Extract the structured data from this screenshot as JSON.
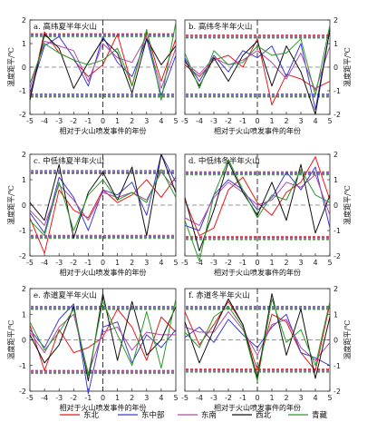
{
  "legend": [
    {
      "name": "东北",
      "color": "#e41a1c"
    },
    {
      "name": "东中部",
      "color": "#3d3bd6"
    },
    {
      "name": "东南",
      "color": "#b14aa8"
    },
    {
      "name": "西北",
      "color": "#111111"
    },
    {
      "name": "青藏",
      "color": "#2a9a2a"
    }
  ],
  "chart_data": [
    {
      "type": "line",
      "panel": "a",
      "title": "a. 高纬夏半年火山",
      "xlabel": "相对于火山喷发事件的年份",
      "ylabel": "温度距平/℃",
      "x": [
        -5,
        -4,
        -3,
        -2,
        -1,
        0,
        1,
        2,
        3,
        4,
        5
      ],
      "xlim": [
        -5,
        5
      ],
      "ylim": [
        -2,
        2
      ],
      "yticks_side": "left",
      "thresholds": [
        1.35,
        -1.2
      ],
      "series": [
        {
          "name": "东北",
          "values": [
            -1.3,
            1.5,
            0.6,
            0.3,
            -0.4,
            0.1,
            1.4,
            -0.8,
            1.5,
            -0.6,
            1.2
          ]
        },
        {
          "name": "东中部",
          "values": [
            -1.1,
            0.9,
            1.3,
            0.4,
            -0.8,
            1.3,
            0.2,
            -0.4,
            1.2,
            -1.2,
            0.5
          ]
        },
        {
          "name": "东南",
          "values": [
            -0.9,
            1.1,
            0.9,
            0.7,
            -0.6,
            1.0,
            0.4,
            0.2,
            1.3,
            -0.9,
            0.8
          ]
        },
        {
          "name": "西北",
          "values": [
            -1.4,
            1.4,
            0.8,
            -0.9,
            0.2,
            1.2,
            0.6,
            -1.1,
            1.2,
            0.1,
            0.9
          ]
        },
        {
          "name": "青藏",
          "values": [
            -0.7,
            1.0,
            0.6,
            0.3,
            0.1,
            0.3,
            0.8,
            -0.8,
            1.6,
            -1.4,
            1.9
          ]
        }
      ]
    },
    {
      "type": "line",
      "panel": "b",
      "title": "b. 高纬冬半年火山",
      "xlabel": "相对于火山喷发事件的年份",
      "ylabel": "温度距平/℃",
      "x": [
        -5,
        -4,
        -3,
        -2,
        -1,
        0,
        1,
        2,
        3,
        4,
        5
      ],
      "xlim": [
        -5,
        5
      ],
      "ylim": [
        -2,
        2
      ],
      "yticks_side": "right",
      "thresholds": [
        1.3,
        -1.2
      ],
      "series": [
        {
          "name": "东北",
          "values": [
            0.1,
            -0.4,
            0.3,
            0.5,
            0.0,
            1.2,
            -1.6,
            -0.3,
            -0.5,
            -0.9,
            -0.6
          ]
        },
        {
          "name": "东中部",
          "values": [
            0.4,
            -0.6,
            0.5,
            -0.2,
            0.7,
            0.4,
            0.9,
            -0.4,
            1.0,
            -1.8,
            1.6
          ]
        },
        {
          "name": "东南",
          "values": [
            0.2,
            -0.3,
            0.4,
            0.1,
            0.3,
            0.7,
            0.2,
            -0.5,
            0.6,
            -1.0,
            0.9
          ]
        },
        {
          "name": "西北",
          "values": [
            0.3,
            -0.8,
            0.4,
            -0.6,
            0.5,
            1.1,
            -0.8,
            0.9,
            -0.2,
            -2.0,
            1.6
          ]
        },
        {
          "name": "青藏",
          "values": [
            0.6,
            -0.9,
            0.7,
            0.1,
            0.2,
            0.9,
            0.5,
            0.6,
            1.2,
            -1.2,
            1.8
          ]
        }
      ]
    },
    {
      "type": "line",
      "panel": "c",
      "title": "c. 中低纬夏半年火山",
      "xlabel": "相对于火山喷发事件的年份",
      "ylabel": "温度距平/℃",
      "x": [
        -5,
        -4,
        -3,
        -2,
        -1,
        0,
        1,
        2,
        3,
        4,
        5
      ],
      "xlim": [
        -5,
        5
      ],
      "ylim": [
        -2,
        2
      ],
      "yticks_side": "left",
      "thresholds": [
        1.3,
        -1.25
      ],
      "series": [
        {
          "name": "东北",
          "values": [
            -0.5,
            -1.9,
            0.6,
            -0.2,
            -0.5,
            0.6,
            0.1,
            0.4,
            1.0,
            0.3,
            1.1
          ]
        },
        {
          "name": "东中部",
          "values": [
            -0.3,
            -1.1,
            1.1,
            0.3,
            -1.0,
            0.6,
            0.4,
            0.9,
            -0.4,
            2.0,
            0.9
          ]
        },
        {
          "name": "东南",
          "values": [
            -0.2,
            -0.8,
            0.8,
            0.2,
            -0.6,
            0.5,
            0.3,
            0.5,
            0.2,
            1.3,
            0.6
          ]
        },
        {
          "name": "西北",
          "values": [
            0.1,
            -0.6,
            1.6,
            -1.3,
            0.5,
            1.3,
            0.2,
            1.5,
            -1.2,
            2.0,
            0.5
          ]
        },
        {
          "name": "青藏",
          "values": [
            -0.6,
            -1.2,
            0.9,
            -1.0,
            0.4,
            1.0,
            0.2,
            0.5,
            0.1,
            1.4,
            0.3
          ]
        }
      ]
    },
    {
      "type": "line",
      "panel": "d",
      "title": "d. 中低纬冬半年火山",
      "xlabel": "相对于火山喷发事件的年份",
      "ylabel": "温度距平/℃",
      "x": [
        -5,
        -4,
        -3,
        -2,
        -1,
        0,
        1,
        2,
        3,
        4,
        5
      ],
      "xlim": [
        -5,
        5
      ],
      "ylim": [
        -2,
        2
      ],
      "yticks_side": "right",
      "thresholds": [
        1.25,
        -1.3
      ],
      "series": [
        {
          "name": "东北",
          "values": [
            0.2,
            -1.2,
            -0.9,
            0.6,
            1.1,
            0.1,
            -0.4,
            0.5,
            0.9,
            1.9,
            0.2
          ]
        },
        {
          "name": "东中部",
          "values": [
            -0.8,
            -1.0,
            0.4,
            1.0,
            0.6,
            -0.2,
            0.3,
            1.3,
            0.6,
            1.5,
            -0.9
          ]
        },
        {
          "name": "东南",
          "values": [
            -0.5,
            -0.8,
            0.3,
            0.9,
            0.5,
            0.0,
            0.2,
            0.9,
            0.7,
            1.2,
            -0.4
          ]
        },
        {
          "name": "西北",
          "values": [
            0.3,
            -1.8,
            -0.2,
            1.7,
            0.5,
            -0.4,
            0.9,
            -0.6,
            1.6,
            -1.1,
            0.4
          ]
        },
        {
          "name": "青藏",
          "values": [
            -0.6,
            -2.2,
            0.4,
            1.8,
            0.6,
            -0.5,
            0.4,
            0.2,
            1.4,
            0.4,
            0.1
          ]
        }
      ]
    },
    {
      "type": "line",
      "panel": "e",
      "title": "e. 赤道夏半年火山",
      "xlabel": "相对于火山喷发事件的年份",
      "ylabel": "温度距平/℃",
      "x": [
        -5,
        -4,
        -3,
        -2,
        -1,
        0,
        1,
        2,
        3,
        4,
        5
      ],
      "xlim": [
        -5,
        5
      ],
      "ylim": [
        -2,
        2
      ],
      "yticks_side": "left",
      "thresholds": [
        1.25,
        -1.25
      ],
      "series": [
        {
          "name": "东北",
          "values": [
            0.6,
            -1.2,
            0.4,
            -0.5,
            -0.3,
            0.1,
            1.2,
            0.5,
            -0.8,
            0.9,
            0.3
          ]
        },
        {
          "name": "东中部",
          "values": [
            0.4,
            -0.3,
            0.8,
            1.4,
            -2.1,
            0.5,
            0.7,
            -0.9,
            0.2,
            -0.3,
            0.4
          ]
        },
        {
          "name": "东南",
          "values": [
            0.3,
            -0.5,
            0.5,
            1.0,
            -1.3,
            0.3,
            0.5,
            -0.4,
            0.3,
            0.2,
            0.2
          ]
        },
        {
          "name": "西北",
          "values": [
            0.2,
            -0.9,
            -0.2,
            1.3,
            -1.6,
            1.8,
            -0.8,
            1.5,
            -0.6,
            0.0,
            1.3
          ]
        },
        {
          "name": "青藏",
          "values": [
            0.7,
            -0.4,
            0.3,
            1.2,
            -1.4,
            1.5,
            0.2,
            -1.0,
            1.1,
            -1.1,
            1.6
          ]
        }
      ]
    },
    {
      "type": "line",
      "panel": "f",
      "title": "f. 赤道冬半年火山",
      "xlabel": "相对于火山喷发事件的年份",
      "ylabel": "温度距平/℃",
      "x": [
        -5,
        -4,
        -3,
        -2,
        -1,
        0,
        1,
        2,
        3,
        4,
        5
      ],
      "xlim": [
        -5,
        5
      ],
      "ylim": [
        -2,
        2
      ],
      "yticks_side": "right",
      "thresholds": [
        1.25,
        -1.2
      ],
      "series": [
        {
          "name": "东北",
          "values": [
            1.1,
            -0.2,
            0.6,
            1.5,
            0.6,
            -1.2,
            1.0,
            0.7,
            -0.5,
            -1.2,
            1.4
          ]
        },
        {
          "name": "东中部",
          "values": [
            0.1,
            0.5,
            -0.1,
            0.8,
            0.2,
            -0.3,
            0.5,
            1.0,
            -0.5,
            -0.7,
            -1.0
          ]
        },
        {
          "name": "东南",
          "values": [
            0.5,
            0.3,
            0.3,
            1.1,
            0.4,
            -0.6,
            0.6,
            0.8,
            -0.3,
            -0.8,
            -0.1
          ]
        },
        {
          "name": "西北",
          "values": [
            0.7,
            -0.9,
            0.4,
            1.6,
            0.6,
            -1.5,
            1.8,
            -0.6,
            1.2,
            -1.5,
            0.9
          ]
        },
        {
          "name": "青藏",
          "values": [
            0.3,
            -0.3,
            0.9,
            1.3,
            0.5,
            -1.6,
            1.6,
            -0.1,
            0.4,
            -1.0,
            1.5
          ]
        }
      ]
    }
  ]
}
